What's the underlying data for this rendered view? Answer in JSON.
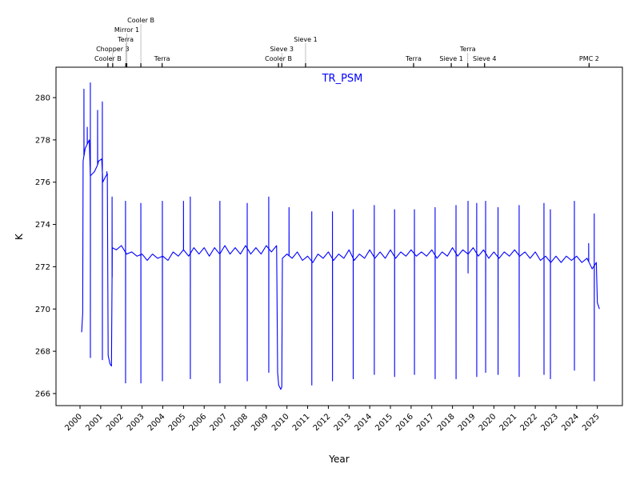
{
  "chart_data": {
    "type": "line",
    "title": "TR_PSM",
    "title_color": "#0000ff",
    "line_color": "#0000ff",
    "xlabel": "Year",
    "ylabel": "K",
    "xlim": [
      1998.84,
      2026.21
    ],
    "ylim": [
      265.43,
      281.44
    ],
    "grid": false,
    "x_ticks": [
      2000,
      2001,
      2002,
      2003,
      2004,
      2005,
      2006,
      2007,
      2008,
      2009,
      2010,
      2011,
      2012,
      2013,
      2014,
      2015,
      2016,
      2017,
      2018,
      2019,
      2020,
      2021,
      2022,
      2023,
      2024,
      2025
    ],
    "x_tick_labels": [
      "2000",
      "2001",
      "2002",
      "2003",
      "2004",
      "2005",
      "2006",
      "2007",
      "2008",
      "2009",
      "2010",
      "2011",
      "2012",
      "2013",
      "2014",
      "2015",
      "2016",
      "2017",
      "2018",
      "2019",
      "2020",
      "2021",
      "2022",
      "2023",
      "2024",
      "2025"
    ],
    "y_ticks": [
      266,
      268,
      270,
      272,
      274,
      276,
      278,
      280
    ],
    "y_tick_labels": [
      "266",
      "268",
      "270",
      "272",
      "274",
      "276",
      "278",
      "280"
    ],
    "events": [
      {
        "year": 2001.35,
        "label": "Cooler B"
      },
      {
        "year": 2001.58,
        "label": "Chopper 3"
      },
      {
        "year": 2002.21,
        "label": "Terra"
      },
      {
        "year": 2002.26,
        "label": "Mirror 1"
      },
      {
        "year": 2002.94,
        "label": "Cooler B"
      },
      {
        "year": 2003.97,
        "label": "Terra"
      },
      {
        "year": 2009.59,
        "label": "Cooler B"
      },
      {
        "year": 2009.75,
        "label": "Sieve 3"
      },
      {
        "year": 2010.9,
        "label": "Sieve 1"
      },
      {
        "year": 2016.12,
        "label": "Terra"
      },
      {
        "year": 2017.94,
        "label": "Sieve 1"
      },
      {
        "year": 2018.74,
        "label": "Terra"
      },
      {
        "year": 2019.55,
        "label": "Sieve 4"
      },
      {
        "year": 2024.6,
        "label": "PMC 2"
      }
    ],
    "series_baseline": [
      [
        2000.08,
        268.9
      ],
      [
        2000.13,
        269.8
      ],
      [
        2000.15,
        277.0
      ],
      [
        2000.25,
        277.6
      ],
      [
        2000.35,
        277.8
      ],
      [
        2000.45,
        278.0
      ],
      [
        2000.5,
        276.3
      ],
      [
        2000.7,
        276.5
      ],
      [
        2000.84,
        276.8
      ],
      [
        2000.9,
        277.0
      ],
      [
        2001.05,
        277.1
      ],
      [
        2001.1,
        276.0
      ],
      [
        2001.2,
        276.2
      ],
      [
        2001.32,
        276.4
      ],
      [
        2001.36,
        267.8
      ],
      [
        2001.45,
        267.4
      ],
      [
        2001.52,
        267.3
      ],
      [
        2001.56,
        272.9
      ],
      [
        2001.75,
        272.8
      ],
      [
        2002.0,
        273.0
      ],
      [
        2002.25,
        272.6
      ],
      [
        2002.5,
        272.7
      ],
      [
        2002.75,
        272.5
      ],
      [
        2003.0,
        272.6
      ],
      [
        2003.25,
        272.3
      ],
      [
        2003.5,
        272.6
      ],
      [
        2003.75,
        272.4
      ],
      [
        2004.0,
        272.5
      ],
      [
        2004.25,
        272.3
      ],
      [
        2004.5,
        272.7
      ],
      [
        2004.75,
        272.5
      ],
      [
        2005.0,
        272.8
      ],
      [
        2005.25,
        272.5
      ],
      [
        2005.5,
        272.9
      ],
      [
        2005.75,
        272.6
      ],
      [
        2006.0,
        272.9
      ],
      [
        2006.25,
        272.5
      ],
      [
        2006.5,
        272.9
      ],
      [
        2006.75,
        272.6
      ],
      [
        2007.0,
        273.0
      ],
      [
        2007.25,
        272.6
      ],
      [
        2007.5,
        272.9
      ],
      [
        2007.75,
        272.6
      ],
      [
        2008.0,
        273.0
      ],
      [
        2008.25,
        272.6
      ],
      [
        2008.5,
        272.9
      ],
      [
        2008.75,
        272.6
      ],
      [
        2009.0,
        273.0
      ],
      [
        2009.25,
        272.7
      ],
      [
        2009.5,
        273.0
      ],
      [
        2009.55,
        267.0
      ],
      [
        2009.6,
        266.4
      ],
      [
        2009.7,
        266.2
      ],
      [
        2009.75,
        266.3
      ],
      [
        2009.78,
        272.4
      ],
      [
        2010.0,
        272.6
      ],
      [
        2010.25,
        272.4
      ],
      [
        2010.5,
        272.7
      ],
      [
        2010.75,
        272.3
      ],
      [
        2011.0,
        272.5
      ],
      [
        2011.25,
        272.2
      ],
      [
        2011.5,
        272.6
      ],
      [
        2011.75,
        272.4
      ],
      [
        2012.0,
        272.7
      ],
      [
        2012.25,
        272.3
      ],
      [
        2012.5,
        272.6
      ],
      [
        2012.75,
        272.4
      ],
      [
        2013.0,
        272.8
      ],
      [
        2013.25,
        272.3
      ],
      [
        2013.5,
        272.6
      ],
      [
        2013.75,
        272.4
      ],
      [
        2014.0,
        272.8
      ],
      [
        2014.25,
        272.4
      ],
      [
        2014.5,
        272.7
      ],
      [
        2014.75,
        272.4
      ],
      [
        2015.0,
        272.8
      ],
      [
        2015.25,
        272.4
      ],
      [
        2015.5,
        272.7
      ],
      [
        2015.75,
        272.5
      ],
      [
        2016.0,
        272.8
      ],
      [
        2016.25,
        272.5
      ],
      [
        2016.5,
        272.7
      ],
      [
        2016.75,
        272.5
      ],
      [
        2017.0,
        272.8
      ],
      [
        2017.25,
        272.4
      ],
      [
        2017.5,
        272.7
      ],
      [
        2017.75,
        272.5
      ],
      [
        2018.0,
        272.9
      ],
      [
        2018.25,
        272.5
      ],
      [
        2018.5,
        272.8
      ],
      [
        2018.75,
        272.6
      ],
      [
        2019.0,
        272.9
      ],
      [
        2019.25,
        272.5
      ],
      [
        2019.5,
        272.8
      ],
      [
        2019.75,
        272.4
      ],
      [
        2020.0,
        272.7
      ],
      [
        2020.25,
        272.4
      ],
      [
        2020.5,
        272.7
      ],
      [
        2020.75,
        272.5
      ],
      [
        2021.0,
        272.8
      ],
      [
        2021.25,
        272.5
      ],
      [
        2021.5,
        272.7
      ],
      [
        2021.75,
        272.4
      ],
      [
        2022.0,
        272.7
      ],
      [
        2022.25,
        272.3
      ],
      [
        2022.5,
        272.5
      ],
      [
        2022.75,
        272.2
      ],
      [
        2023.0,
        272.5
      ],
      [
        2023.25,
        272.2
      ],
      [
        2023.5,
        272.5
      ],
      [
        2023.75,
        272.3
      ],
      [
        2024.0,
        272.5
      ],
      [
        2024.25,
        272.2
      ],
      [
        2024.5,
        272.4
      ],
      [
        2024.75,
        271.9
      ],
      [
        2024.95,
        272.2
      ],
      [
        2025.0,
        270.3
      ],
      [
        2025.1,
        270.0
      ]
    ],
    "spikes": [
      [
        2000.19,
        280.4,
        null
      ],
      [
        2000.35,
        278.6,
        null
      ],
      [
        2000.5,
        280.7,
        267.7
      ],
      [
        2000.85,
        279.4,
        null
      ],
      [
        2001.08,
        279.8,
        267.6
      ],
      [
        2001.3,
        276.5,
        null
      ],
      [
        2001.55,
        275.3,
        null
      ],
      [
        2002.2,
        275.1,
        266.5
      ],
      [
        2002.94,
        275.0,
        266.5
      ],
      [
        2003.98,
        275.1,
        266.6
      ],
      [
        2005.0,
        275.1,
        null
      ],
      [
        2005.33,
        275.3,
        266.7
      ],
      [
        2006.76,
        275.1,
        266.5
      ],
      [
        2008.08,
        275.0,
        266.6
      ],
      [
        2009.12,
        275.3,
        267.0
      ],
      [
        2010.1,
        274.8,
        null
      ],
      [
        2011.2,
        274.6,
        266.4
      ],
      [
        2012.2,
        274.6,
        266.6
      ],
      [
        2013.2,
        274.7,
        266.7
      ],
      [
        2014.22,
        274.9,
        266.9
      ],
      [
        2015.2,
        274.7,
        266.8
      ],
      [
        2016.16,
        274.7,
        266.9
      ],
      [
        2017.16,
        274.8,
        266.7
      ],
      [
        2018.17,
        274.9,
        266.7
      ],
      [
        2018.75,
        275.1,
        271.7
      ],
      [
        2019.17,
        275.0,
        266.8
      ],
      [
        2019.6,
        275.1,
        267.0
      ],
      [
        2020.2,
        274.8,
        266.9
      ],
      [
        2021.22,
        274.9,
        266.8
      ],
      [
        2022.42,
        275.0,
        266.9
      ],
      [
        2022.73,
        274.7,
        266.7
      ],
      [
        2023.89,
        275.1,
        267.1
      ],
      [
        2024.58,
        273.1,
        null
      ],
      [
        2024.85,
        274.5,
        266.6
      ]
    ]
  }
}
